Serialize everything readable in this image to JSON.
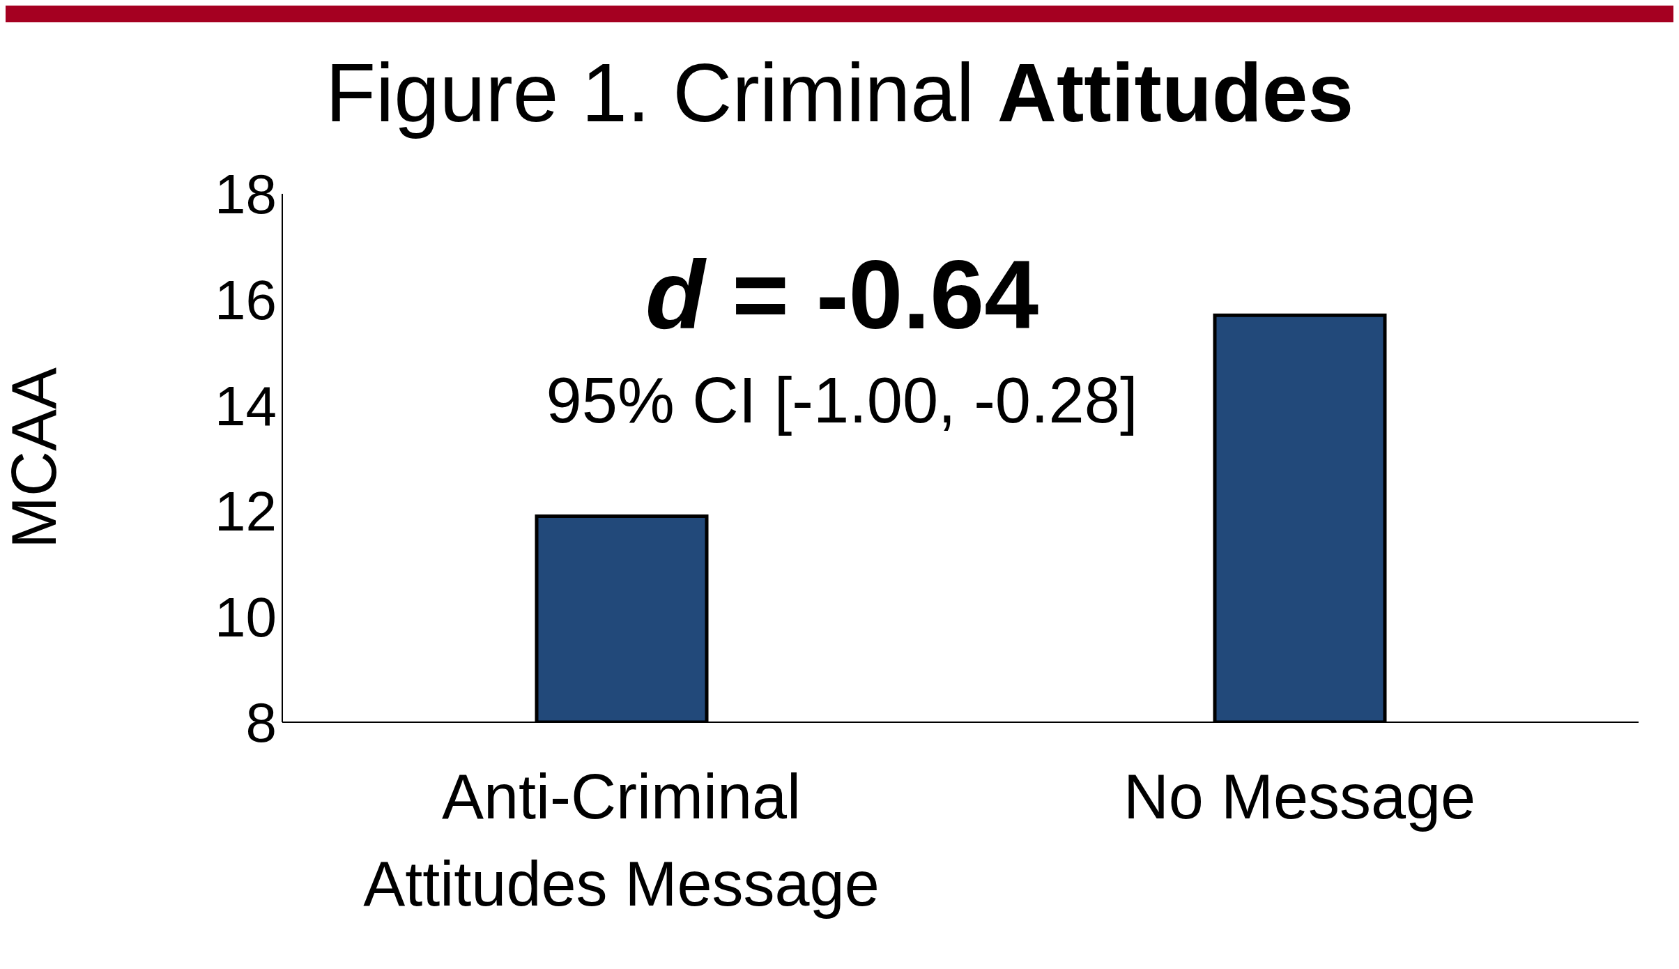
{
  "chart_data": {
    "type": "bar",
    "title": "Figure 1. Criminal Attitudes",
    "ylabel": "MCAA",
    "categories": [
      "Anti-Criminal Attitudes Message",
      "No Message"
    ],
    "values": [
      11.9,
      15.7
    ],
    "color": "#22497a",
    "ylim": [
      8,
      18
    ],
    "yticks": [
      8,
      10,
      12,
      14,
      16,
      18
    ],
    "grid": false,
    "annotations": [
      "d = -0.64",
      "95% CI [-1.00, -0.28]"
    ]
  }
}
